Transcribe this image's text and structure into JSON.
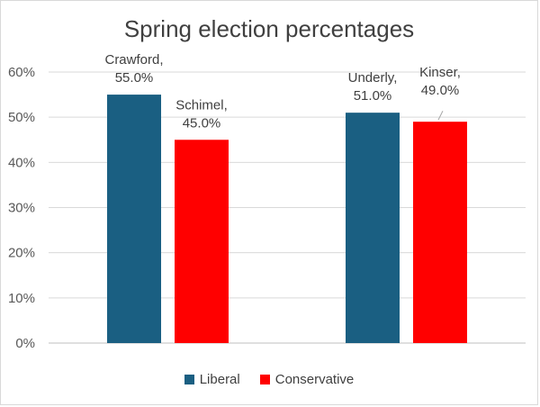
{
  "chart_data": {
    "type": "bar",
    "title": "Spring election percentages",
    "categories": [
      "",
      ""
    ],
    "series": [
      {
        "name": "Liberal",
        "color": "#1a5f82",
        "values": [
          55.0,
          51.0
        ],
        "labels": [
          "Crawford,\n55.0%",
          "Underly,\n51.0%"
        ]
      },
      {
        "name": "Conservative",
        "color": "#ff0000",
        "values": [
          45.0,
          49.0
        ],
        "labels": [
          "Schimel,\n45.0%",
          "Kinser,\n49.0%"
        ]
      }
    ],
    "ylim": [
      0,
      60
    ],
    "yticks": [
      "0%",
      "10%",
      "20%",
      "30%",
      "40%",
      "50%",
      "60%"
    ],
    "grid": true,
    "legend_position": "bottom"
  }
}
